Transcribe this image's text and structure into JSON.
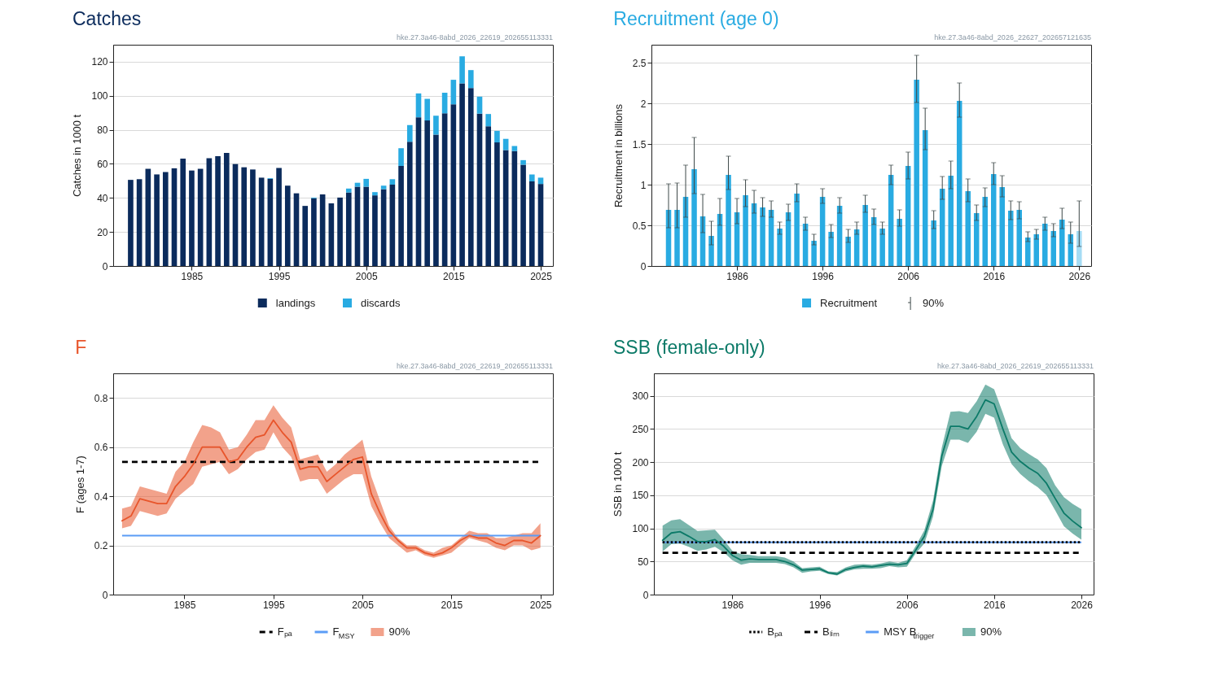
{
  "chart_data": [
    {
      "type": "bar",
      "title": "Catches",
      "ylabel": "Catches in 1000 t",
      "stacked": true,
      "x": [
        1978,
        1979,
        1980,
        1981,
        1982,
        1983,
        1984,
        1985,
        1986,
        1987,
        1988,
        1989,
        1990,
        1991,
        1992,
        1993,
        1994,
        1995,
        1996,
        1997,
        1998,
        1999,
        2000,
        2001,
        2002,
        2003,
        2004,
        2005,
        2006,
        2007,
        2008,
        2009,
        2010,
        2011,
        2012,
        2013,
        2014,
        2015,
        2016,
        2017,
        2018,
        2019,
        2020,
        2021,
        2022,
        2023,
        2024,
        2025
      ],
      "series": [
        {
          "name": "landings",
          "color": "#0b2b5c",
          "values": [
            50.6,
            51.0,
            57.1,
            53.8,
            55.2,
            57.4,
            63.1,
            56.1,
            57.1,
            63.3,
            64.5,
            66.4,
            59.9,
            58.0,
            56.7,
            51.9,
            51.2,
            57.6,
            47.2,
            42.7,
            35.3,
            39.8,
            42.1,
            36.8,
            40.2,
            43.2,
            46.6,
            46.6,
            41.5,
            45.1,
            47.8,
            58.8,
            73.0,
            87.4,
            85.5,
            77.2,
            89.7,
            95.0,
            107.3,
            104.6,
            89.5,
            82.1,
            72.6,
            68.1,
            67.5,
            59.5,
            49.7,
            48.2
          ]
        },
        {
          "name": "discards",
          "color": "#29abe2",
          "values": [
            null,
            null,
            null,
            null,
            null,
            null,
            null,
            null,
            null,
            null,
            null,
            null,
            null,
            null,
            null,
            null,
            0.4,
            null,
            null,
            null,
            null,
            0.4,
            null,
            null,
            null,
            2.3,
            2.3,
            4.6,
            1.9,
            2.1,
            3.2,
            10.4,
            9.8,
            14.0,
            12.7,
            11.1,
            12.1,
            14.4,
            15.9,
            10.5,
            10.0,
            7.2,
            6.8,
            6.6,
            3.0,
            2.7,
            4.1,
            3.7
          ]
        }
      ],
      "xlim": [
        1976,
        2026.4
      ],
      "xticks": [
        1985,
        1995,
        2005,
        2015,
        2025
      ],
      "ylim": [
        0,
        130
      ],
      "yticks": [
        0,
        20,
        40,
        60,
        80,
        100,
        120
      ],
      "grid": "y",
      "legend": "bottom",
      "annotations": [
        "hke.27.3a46-8abd_2026_22619_202655113331"
      ]
    },
    {
      "type": "bar",
      "title": "Recruitment (age 0)",
      "ylabel": "Recruitment in billions",
      "x": [
        1978,
        1979,
        1980,
        1981,
        1982,
        1983,
        1984,
        1985,
        1986,
        1987,
        1988,
        1989,
        1990,
        1991,
        1992,
        1993,
        1994,
        1995,
        1996,
        1997,
        1998,
        1999,
        2000,
        2001,
        2002,
        2003,
        2004,
        2005,
        2006,
        2007,
        2008,
        2009,
        2010,
        2011,
        2012,
        2013,
        2014,
        2015,
        2016,
        2017,
        2018,
        2019,
        2020,
        2021,
        2022,
        2023,
        2024,
        2025,
        2026
      ],
      "series": [
        {
          "name": "Recruitment",
          "color": "#29abe2",
          "colors": [
            "#29abe2",
            "#29abe2",
            "#29abe2",
            "#29abe2",
            "#29abe2",
            "#29abe2",
            "#29abe2",
            "#29abe2",
            "#29abe2",
            "#29abe2",
            "#29abe2",
            "#29abe2",
            "#29abe2",
            "#29abe2",
            "#29abe2",
            "#29abe2",
            "#29abe2",
            "#29abe2",
            "#29abe2",
            "#29abe2",
            "#29abe2",
            "#29abe2",
            "#29abe2",
            "#29abe2",
            "#29abe2",
            "#29abe2",
            "#29abe2",
            "#29abe2",
            "#29abe2",
            "#29abe2",
            "#29abe2",
            "#29abe2",
            "#29abe2",
            "#29abe2",
            "#29abe2",
            "#29abe2",
            "#29abe2",
            "#29abe2",
            "#29abe2",
            "#29abe2",
            "#29abe2",
            "#29abe2",
            "#29abe2",
            "#29abe2",
            "#29abe2",
            "#29abe2",
            "#29abe2",
            "#29abe2",
            "#a5dcf4"
          ],
          "values": [
            0.69,
            0.69,
            0.85,
            1.19,
            0.61,
            0.37,
            0.64,
            1.12,
            0.66,
            0.87,
            0.77,
            0.72,
            0.69,
            0.46,
            0.66,
            0.89,
            0.52,
            0.31,
            0.85,
            0.42,
            0.74,
            0.36,
            0.45,
            0.75,
            0.6,
            0.46,
            1.12,
            0.58,
            1.23,
            2.29,
            1.67,
            0.56,
            0.95,
            1.11,
            2.03,
            0.92,
            0.65,
            0.85,
            1.13,
            0.97,
            0.68,
            0.69,
            0.35,
            0.39,
            0.52,
            0.43,
            0.57,
            0.39,
            0.43
          ],
          "errors": [
            [
              0.47,
              1.01
            ],
            [
              0.47,
              1.02
            ],
            [
              0.6,
              1.24
            ],
            [
              0.89,
              1.58
            ],
            [
              0.41,
              0.88
            ],
            [
              0.26,
              0.55
            ],
            [
              0.5,
              0.83
            ],
            [
              0.94,
              1.35
            ],
            [
              0.52,
              0.83
            ],
            [
              0.73,
              1.06
            ],
            [
              0.65,
              0.93
            ],
            [
              0.61,
              0.84
            ],
            [
              0.6,
              0.8
            ],
            [
              0.39,
              0.54
            ],
            [
              0.56,
              0.76
            ],
            [
              0.79,
              1.01
            ],
            [
              0.44,
              0.6
            ],
            [
              0.26,
              0.39
            ],
            [
              0.77,
              0.95
            ],
            [
              0.35,
              0.51
            ],
            [
              0.65,
              0.84
            ],
            [
              0.29,
              0.45
            ],
            [
              0.39,
              0.54
            ],
            [
              0.66,
              0.87
            ],
            [
              0.51,
              0.7
            ],
            [
              0.39,
              0.54
            ],
            [
              1.0,
              1.24
            ],
            [
              0.49,
              0.69
            ],
            [
              1.07,
              1.4
            ],
            [
              2.01,
              2.59
            ],
            [
              1.43,
              1.94
            ],
            [
              0.46,
              0.68
            ],
            [
              0.82,
              1.1
            ],
            [
              0.95,
              1.29
            ],
            [
              1.83,
              2.25
            ],
            [
              0.79,
              1.07
            ],
            [
              0.56,
              0.75
            ],
            [
              0.73,
              0.96
            ],
            [
              1.0,
              1.27
            ],
            [
              0.85,
              1.11
            ],
            [
              0.57,
              0.8
            ],
            [
              0.58,
              0.79
            ],
            [
              0.3,
              0.42
            ],
            [
              0.33,
              0.45
            ],
            [
              0.44,
              0.6
            ],
            [
              0.36,
              0.52
            ],
            [
              0.46,
              0.71
            ],
            [
              0.28,
              0.54
            ],
            [
              0.24,
              0.8
            ]
          ]
        }
      ],
      "xlim": [
        1976,
        2027.4
      ],
      "xticks": [
        1986,
        1996,
        2006,
        2016,
        2026
      ],
      "ylim": [
        0,
        2.72
      ],
      "yticks": [
        0,
        0.5,
        1,
        1.5,
        2,
        2.5
      ],
      "grid": "y",
      "legend": "bottom",
      "annotations": [
        "hke.27.3a46-8abd_2026_22627_202657121635",
        "90%"
      ]
    },
    {
      "type": "line",
      "title": "F",
      "ylabel": "F (ages 1-7)",
      "x": [
        1978,
        1979,
        1980,
        1981,
        1982,
        1983,
        1984,
        1985,
        1986,
        1987,
        1988,
        1989,
        1990,
        1991,
        1992,
        1993,
        1994,
        1995,
        1996,
        1997,
        1998,
        1999,
        2000,
        2001,
        2002,
        2003,
        2004,
        2005,
        2006,
        2007,
        2008,
        2009,
        2010,
        2011,
        2012,
        2013,
        2014,
        2015,
        2016,
        2017,
        2018,
        2019,
        2020,
        2021,
        2022,
        2023,
        2024,
        2025
      ],
      "series": [
        {
          "name": "90%",
          "color": "#e8552b",
          "values": [
            0.3,
            0.32,
            0.39,
            0.38,
            0.37,
            0.37,
            0.44,
            0.48,
            0.53,
            0.6,
            0.6,
            0.6,
            0.54,
            0.55,
            0.6,
            0.64,
            0.65,
            0.71,
            0.66,
            0.62,
            0.51,
            0.52,
            0.52,
            0.46,
            0.49,
            0.52,
            0.55,
            0.56,
            0.41,
            0.33,
            0.26,
            0.22,
            0.19,
            0.19,
            0.17,
            0.16,
            0.17,
            0.19,
            0.22,
            0.24,
            0.23,
            0.23,
            0.21,
            0.2,
            0.22,
            0.22,
            0.21,
            0.24
          ],
          "lower": [
            0.27,
            0.28,
            0.34,
            0.33,
            0.32,
            0.33,
            0.39,
            0.42,
            0.45,
            0.52,
            0.53,
            0.54,
            0.49,
            0.51,
            0.55,
            0.58,
            0.59,
            0.66,
            0.6,
            0.56,
            0.46,
            0.47,
            0.47,
            0.41,
            0.44,
            0.47,
            0.49,
            0.49,
            0.36,
            0.29,
            0.23,
            0.2,
            0.17,
            0.18,
            0.16,
            0.15,
            0.16,
            0.17,
            0.2,
            0.23,
            0.22,
            0.21,
            0.19,
            0.18,
            0.2,
            0.2,
            0.18,
            0.19
          ],
          "upper": [
            0.35,
            0.36,
            0.44,
            0.43,
            0.42,
            0.41,
            0.5,
            0.54,
            0.62,
            0.69,
            0.68,
            0.66,
            0.59,
            0.6,
            0.65,
            0.71,
            0.71,
            0.77,
            0.72,
            0.68,
            0.55,
            0.56,
            0.57,
            0.5,
            0.53,
            0.57,
            0.6,
            0.63,
            0.48,
            0.38,
            0.28,
            0.23,
            0.2,
            0.2,
            0.18,
            0.17,
            0.19,
            0.2,
            0.23,
            0.26,
            0.25,
            0.25,
            0.23,
            0.23,
            0.24,
            0.25,
            0.25,
            0.29
          ]
        }
      ],
      "ref_lines": [
        {
          "axis": "y",
          "value": 0.54,
          "label": "Fₚₐ",
          "color": "#000000",
          "line_style": "dashed"
        },
        {
          "axis": "y",
          "value": 0.24,
          "label": "F$_{MSY}$",
          "color": "#5b9cf6",
          "line_style": "solid"
        }
      ],
      "xlim": [
        1977,
        2026.4
      ],
      "xticks": [
        1985,
        1995,
        2005,
        2015,
        2025
      ],
      "ylim": [
        0,
        0.9
      ],
      "yticks": [
        0,
        0.2,
        0.4,
        0.6,
        0.8
      ],
      "grid": "y",
      "legend": "bottom",
      "annotations": [
        "hke.27.3a46-8abd_2026_22619_202655113331"
      ]
    },
    {
      "type": "line",
      "title": "SSB (female-only)",
      "ylabel": "SSB in 1000 t",
      "x": [
        1978,
        1979,
        1980,
        1981,
        1982,
        1983,
        1984,
        1985,
        1986,
        1987,
        1988,
        1989,
        1990,
        1991,
        1992,
        1993,
        1994,
        1995,
        1996,
        1997,
        1998,
        1999,
        2000,
        2001,
        2002,
        2003,
        2004,
        2005,
        2006,
        2007,
        2008,
        2009,
        2010,
        2011,
        2012,
        2013,
        2014,
        2015,
        2016,
        2017,
        2018,
        2019,
        2020,
        2021,
        2022,
        2023,
        2024,
        2025,
        2026
      ],
      "series": [
        {
          "name": "90%",
          "color": "#0c7a68",
          "values": [
            82,
            93,
            95,
            88,
            80,
            80,
            83,
            73,
            59,
            52,
            54,
            53,
            53,
            53,
            50,
            45,
            37,
            38,
            39,
            33,
            31,
            38,
            41,
            43,
            42,
            44,
            46,
            45,
            47,
            67,
            88,
            129,
            209,
            254,
            254,
            250,
            269,
            294,
            288,
            250,
            215,
            201,
            191,
            183,
            168,
            145,
            123,
            111,
            101
          ],
          "lower": [
            65,
            76,
            77,
            72,
            66,
            68,
            72,
            64,
            52,
            45,
            48,
            48,
            48,
            48,
            46,
            41,
            33,
            35,
            36,
            31,
            29,
            35,
            38,
            39,
            39,
            40,
            43,
            41,
            42,
            62,
            77,
            118,
            194,
            234,
            234,
            229,
            246,
            273,
            267,
            227,
            197,
            182,
            171,
            162,
            150,
            127,
            103,
            92,
            83
          ],
          "upper": [
            104,
            112,
            114,
            105,
            96,
            97,
            98,
            83,
            66,
            61,
            60,
            58,
            58,
            58,
            56,
            50,
            40,
            41,
            42,
            35,
            34,
            41,
            45,
            46,
            45,
            47,
            50,
            48,
            52,
            73,
            97,
            142,
            222,
            276,
            277,
            274,
            292,
            317,
            310,
            274,
            236,
            221,
            212,
            204,
            191,
            165,
            147,
            137,
            129
          ]
        }
      ],
      "ref_lines": [
        {
          "axis": "y",
          "value": 79,
          "label": "Bₚₐ",
          "color": "#000000",
          "line_style": "dotted"
        },
        {
          "axis": "y",
          "value": 63,
          "label": "Bₗᵢₘ",
          "color": "#000000",
          "line_style": "dashed"
        },
        {
          "axis": "y",
          "value": 79,
          "label": "MSY B$_{trigger}$",
          "color": "#5b9cf6",
          "line_style": "solid"
        }
      ],
      "xlim": [
        1977,
        2027.4
      ],
      "xticks": [
        1986,
        1996,
        2006,
        2016,
        2026
      ],
      "ylim": [
        0,
        334
      ],
      "yticks": [
        0,
        50,
        100,
        150,
        200,
        250,
        300
      ],
      "grid": "y",
      "legend": "bottom",
      "annotations": [
        "hke.27.3a46-8abd_2026_22619_202655113331"
      ]
    }
  ]
}
